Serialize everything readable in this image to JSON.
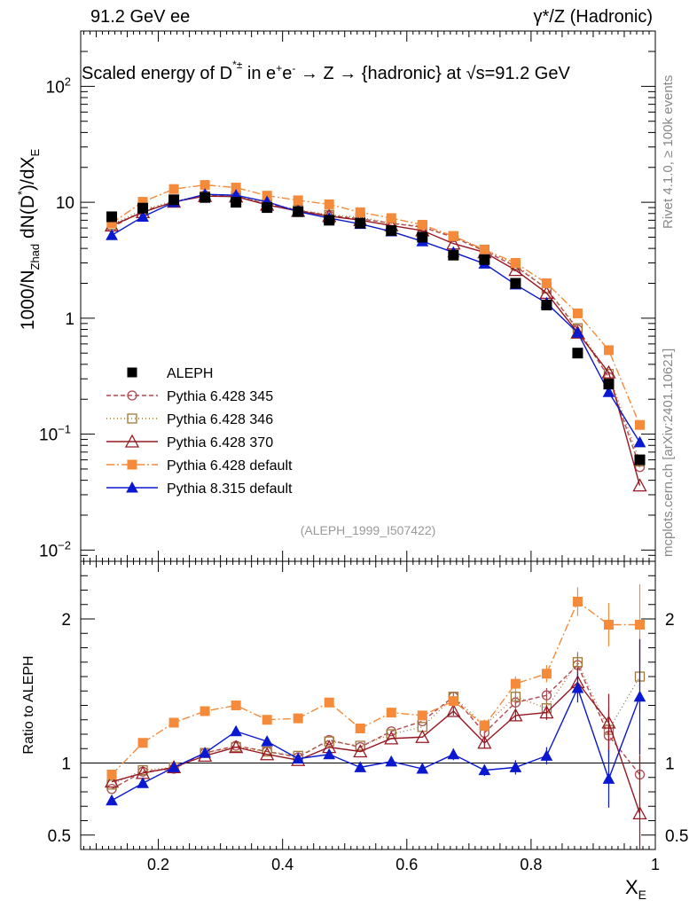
{
  "header": {
    "left": "91.2 GeV ee",
    "right": "γ*/Z (Hadronic)"
  },
  "side_notes": {
    "version": "Rivet 4.1.0, ≥ 100k events",
    "source": "mcplots.cern.ch [arXiv:2401.10621]"
  },
  "chart_data": {
    "type": "scatter",
    "title": "Scaled energy of D*± in e+e- → Z → {hadronic} at √s=91.2 GeV",
    "xlabel": "X_E",
    "ylabel": "1000/N_Zhad dN(D*)/dX_E",
    "ratio_ylabel": "Ratio to ALEPH",
    "watermark": "(ALEPH_1999_I507422)",
    "x": [
      0.125,
      0.175,
      0.225,
      0.275,
      0.325,
      0.375,
      0.425,
      0.475,
      0.525,
      0.575,
      0.625,
      0.675,
      0.725,
      0.775,
      0.825,
      0.875,
      0.925,
      0.975
    ],
    "xlim": [
      0.075,
      1.0
    ],
    "ylim_main": [
      0.008,
      300
    ],
    "ylim_ratio": [
      0.4,
      2.4
    ],
    "x_ticks": [
      "0.2",
      "0.4",
      "0.6",
      "0.8",
      "1"
    ],
    "y_ticks_main": [
      {
        "value": 0.01,
        "base": "10",
        "exp": "−2"
      },
      {
        "value": 0.1,
        "base": "10",
        "exp": "−1"
      },
      {
        "value": 1,
        "base": "1",
        "exp": ""
      },
      {
        "value": 10,
        "base": "10",
        "exp": ""
      },
      {
        "value": 100,
        "base": "10",
        "exp": "2"
      }
    ],
    "y_ticks_ratio": [
      {
        "value": 0.5,
        "label": "0.5"
      },
      {
        "value": 1,
        "label": "1"
      },
      {
        "value": 2,
        "label": "2"
      }
    ],
    "series": [
      {
        "name": "ALEPH",
        "color": "#000000",
        "marker": "square",
        "dash": "none",
        "line": false,
        "values": [
          7.5,
          8.9,
          10.5,
          11.0,
          10.0,
          9.0,
          8.3,
          7.0,
          6.6,
          5.7,
          5.0,
          3.5,
          3.2,
          2.0,
          1.3,
          0.5,
          0.27,
          0.06
        ],
        "ratio": [
          1,
          1,
          1,
          1,
          1,
          1,
          1,
          1,
          1,
          1,
          1,
          1,
          1,
          1,
          1,
          1,
          1,
          1
        ],
        "ratio_err": [
          0,
          0,
          0,
          0,
          0,
          0,
          0,
          0,
          0,
          0,
          0,
          0,
          0,
          0,
          0,
          0,
          0,
          0
        ]
      },
      {
        "name": "Pythia 6.428 345",
        "color": "#b04850",
        "marker": "circle-open",
        "dash": "5,3",
        "line": true,
        "values": [
          6.1,
          8.4,
          10.0,
          11.5,
          11.2,
          9.7,
          8.5,
          7.7,
          7.2,
          6.6,
          6.1,
          5.0,
          3.8,
          2.8,
          1.8,
          0.8,
          0.31,
          0.052
        ],
        "ratio": [
          0.82,
          0.94,
          0.96,
          1.07,
          1.12,
          1.08,
          1.04,
          1.16,
          1.11,
          1.22,
          1.29,
          1.46,
          1.21,
          1.42,
          1.47,
          1.68,
          1.19,
          0.92
        ],
        "ratio_err": [
          0,
          0,
          0,
          0,
          0,
          0,
          0,
          0,
          0,
          0,
          0,
          0.03,
          0.04,
          0.04,
          0.05,
          0.07,
          0.15,
          0.25
        ]
      },
      {
        "name": "Pythia 6.428 346",
        "color": "#a07838",
        "marker": "square-open",
        "dash": "1,3",
        "line": true,
        "values": [
          6.4,
          8.6,
          10.3,
          11.3,
          11.4,
          9.8,
          8.6,
          7.8,
          7.4,
          6.6,
          6.2,
          5.1,
          3.9,
          2.9,
          1.8,
          0.82,
          0.33,
          0.058
        ],
        "ratio": [
          0.85,
          0.95,
          0.97,
          1.07,
          1.11,
          1.08,
          1.05,
          1.15,
          1.12,
          1.2,
          1.25,
          1.46,
          1.26,
          1.46,
          1.38,
          1.7,
          1.23,
          1.6
        ],
        "ratio_err": [
          0,
          0,
          0,
          0,
          0,
          0,
          0,
          0,
          0,
          0,
          0,
          0.03,
          0.04,
          0.04,
          0.05,
          0.07,
          0.15,
          0.25
        ]
      },
      {
        "name": "Pythia 6.428 370",
        "color": "#961822",
        "marker": "triangle-open",
        "dash": "none",
        "line": true,
        "values": [
          6.3,
          8.2,
          10.1,
          11.3,
          11.2,
          9.5,
          8.4,
          7.6,
          7.0,
          6.3,
          5.7,
          4.4,
          3.7,
          2.6,
          1.65,
          0.75,
          0.34,
          0.036
        ],
        "ratio": [
          0.87,
          0.93,
          0.97,
          1.05,
          1.11,
          1.06,
          1.02,
          1.11,
          1.08,
          1.17,
          1.18,
          1.36,
          1.14,
          1.33,
          1.35,
          1.56,
          1.28,
          0.65
        ],
        "ratio_err": [
          0,
          0,
          0,
          0,
          0,
          0,
          0,
          0,
          0,
          0,
          0,
          0.03,
          0.04,
          0.04,
          0.05,
          0.1,
          0.2,
          0.4
        ]
      },
      {
        "name": "Pythia 6.428 default",
        "color": "#f58a3a",
        "marker": "square",
        "dash": "9,3,2,3",
        "line": true,
        "values": [
          6.6,
          10.1,
          13.0,
          14.1,
          13.4,
          11.4,
          10.4,
          9.6,
          8.2,
          7.3,
          6.4,
          5.1,
          3.9,
          3.0,
          2.0,
          1.1,
          0.53,
          0.12
        ],
        "ratio": [
          0.92,
          1.14,
          1.28,
          1.36,
          1.4,
          1.3,
          1.31,
          1.42,
          1.24,
          1.35,
          1.33,
          1.43,
          1.26,
          1.55,
          1.62,
          2.12,
          1.96,
          1.96
        ],
        "ratio_err": [
          0,
          0,
          0,
          0,
          0,
          0,
          0,
          0,
          0,
          0,
          0,
          0.03,
          0.04,
          0.05,
          0.06,
          0.1,
          0.15,
          0.28
        ]
      },
      {
        "name": "Pythia 8.315 default",
        "color": "#0a18d0",
        "marker": "triangle",
        "dash": "none",
        "line": true,
        "values": [
          5.2,
          7.5,
          10.0,
          11.7,
          11.5,
          10.1,
          8.3,
          7.3,
          6.5,
          5.6,
          4.6,
          3.7,
          2.95,
          1.95,
          1.35,
          0.75,
          0.23,
          0.085
        ],
        "ratio": [
          0.74,
          0.86,
          0.97,
          1.07,
          1.22,
          1.15,
          1.03,
          1.06,
          0.97,
          1.01,
          0.96,
          1.06,
          0.95,
          0.97,
          1.05,
          1.52,
          0.89,
          1.46
        ],
        "ratio_err": [
          0.02,
          0.02,
          0.02,
          0.02,
          0.03,
          0.03,
          0.03,
          0.03,
          0.03,
          0.03,
          0.03,
          0.04,
          0.04,
          0.05,
          0.06,
          0.1,
          0.2,
          0.4
        ]
      }
    ]
  }
}
